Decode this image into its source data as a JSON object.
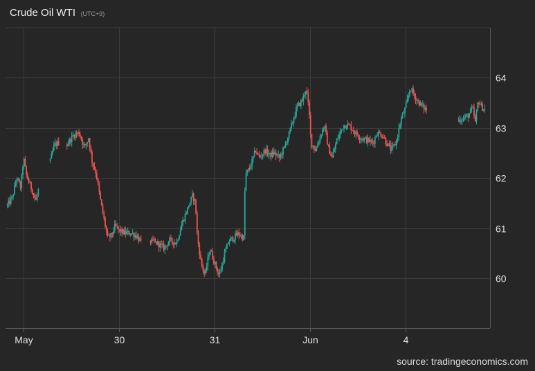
{
  "colors": {
    "background": "#262626",
    "grid": "#3d3d3d",
    "axis": "#5a5a5a",
    "up": "#26a69a",
    "down": "#ef5350"
  },
  "chart_data": {
    "type": "candlestick",
    "title": "Crude Oil WTI",
    "subtitle": "(UTC+9)",
    "source": "source: tradingeconomics.com",
    "xlabel": "",
    "ylabel": "",
    "y_ticks": [
      60,
      61,
      62,
      63,
      64
    ],
    "ylim": [
      59.0,
      64.95
    ],
    "x_ticks": [
      {
        "label": "May",
        "t": 0
      },
      {
        "label": "30",
        "t": 1
      },
      {
        "label": "31",
        "t": 2
      },
      {
        "label": "Jun",
        "t": 3
      },
      {
        "label": "4",
        "t": 4
      }
    ],
    "xlim": [
      -0.2,
      4.86
    ],
    "grid": true,
    "legend": "none",
    "close_path": [
      [
        -0.17,
        61.45
      ],
      [
        -0.12,
        61.6
      ],
      [
        -0.07,
        62.0
      ],
      [
        -0.03,
        61.8
      ],
      [
        0.0,
        62.4
      ],
      [
        0.03,
        62.05
      ],
      [
        0.07,
        61.85
      ],
      [
        0.1,
        61.7
      ],
      [
        0.13,
        61.55
      ],
      [
        0.16,
        61.8
      ],
      [
        0.27,
        62.25
      ],
      [
        0.32,
        62.65
      ],
      [
        0.37,
        62.7
      ],
      [
        0.45,
        62.65
      ],
      [
        0.52,
        62.85
      ],
      [
        0.58,
        62.9
      ],
      [
        0.64,
        62.6
      ],
      [
        0.68,
        62.8
      ],
      [
        0.72,
        62.3
      ],
      [
        0.76,
        62.1
      ],
      [
        0.8,
        61.6
      ],
      [
        0.84,
        61.2
      ],
      [
        0.88,
        60.8
      ],
      [
        0.92,
        60.85
      ],
      [
        0.96,
        61.05
      ],
      [
        1.0,
        60.95
      ],
      [
        1.06,
        60.9
      ],
      [
        1.12,
        60.9
      ],
      [
        1.18,
        60.85
      ],
      [
        1.24,
        60.7
      ],
      [
        1.32,
        60.75
      ],
      [
        1.4,
        60.7
      ],
      [
        1.47,
        60.6
      ],
      [
        1.53,
        60.75
      ],
      [
        1.6,
        60.7
      ],
      [
        1.66,
        61.1
      ],
      [
        1.72,
        61.4
      ],
      [
        1.77,
        61.65
      ],
      [
        1.8,
        61.5
      ],
      [
        1.82,
        60.8
      ],
      [
        1.86,
        60.3
      ],
      [
        1.9,
        60.05
      ],
      [
        1.95,
        60.6
      ],
      [
        2.0,
        60.3
      ],
      [
        2.05,
        60.05
      ],
      [
        2.1,
        60.45
      ],
      [
        2.15,
        60.75
      ],
      [
        2.2,
        60.8
      ],
      [
        2.25,
        60.9
      ],
      [
        2.27,
        60.85
      ],
      [
        2.31,
        60.8
      ],
      [
        2.32,
        62.05
      ],
      [
        2.37,
        62.2
      ],
      [
        2.43,
        62.55
      ],
      [
        2.47,
        62.4
      ],
      [
        2.53,
        62.55
      ],
      [
        2.58,
        62.45
      ],
      [
        2.62,
        62.5
      ],
      [
        2.68,
        62.4
      ],
      [
        2.73,
        62.6
      ],
      [
        2.8,
        63.0
      ],
      [
        2.86,
        63.4
      ],
      [
        2.92,
        63.55
      ],
      [
        2.96,
        63.8
      ],
      [
        2.99,
        63.3
      ],
      [
        3.01,
        62.7
      ],
      [
        3.06,
        62.55
      ],
      [
        3.1,
        62.8
      ],
      [
        3.15,
        63.05
      ],
      [
        3.19,
        62.6
      ],
      [
        3.23,
        62.4
      ],
      [
        3.28,
        62.75
      ],
      [
        3.35,
        63.05
      ],
      [
        3.41,
        63.05
      ],
      [
        3.47,
        62.9
      ],
      [
        3.53,
        62.8
      ],
      [
        3.6,
        62.75
      ],
      [
        3.66,
        62.7
      ],
      [
        3.7,
        62.9
      ],
      [
        3.76,
        62.85
      ],
      [
        3.8,
        62.7
      ],
      [
        3.85,
        62.55
      ],
      [
        3.9,
        62.7
      ],
      [
        3.95,
        63.15
      ],
      [
        4.0,
        63.4
      ],
      [
        4.05,
        63.8
      ],
      [
        4.1,
        63.6
      ],
      [
        4.16,
        63.45
      ],
      [
        4.22,
        63.35
      ],
      [
        4.3,
        63.35
      ],
      [
        4.38,
        63.3
      ],
      [
        4.46,
        63.2
      ],
      [
        4.55,
        63.15
      ],
      [
        4.62,
        63.2
      ],
      [
        4.66,
        63.25
      ],
      [
        4.7,
        63.4
      ],
      [
        4.73,
        63.1
      ],
      [
        4.76,
        63.55
      ],
      [
        4.8,
        63.4
      ],
      [
        4.84,
        63.35
      ]
    ]
  }
}
